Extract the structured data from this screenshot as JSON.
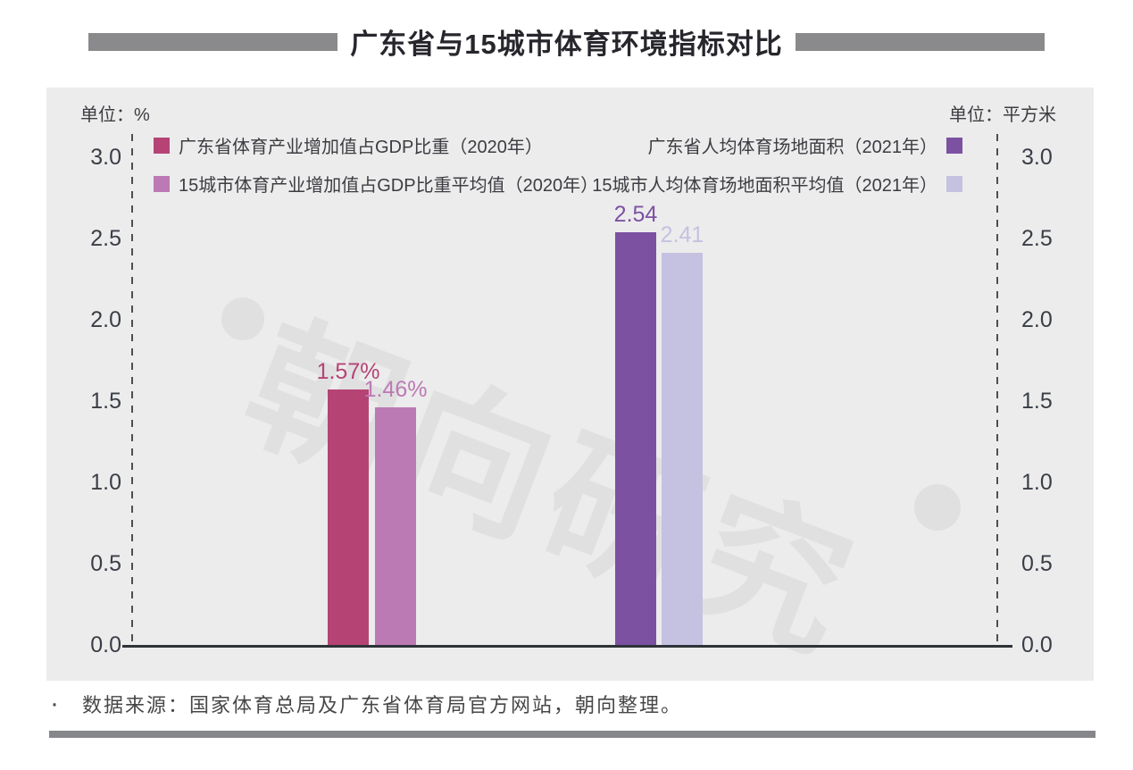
{
  "header": {
    "title": "广东省与15城市体育环境指标对比"
  },
  "chart_data": {
    "type": "bar",
    "title": "广东省与15城市体育环境指标对比",
    "left_axis": {
      "unit": "单位：%",
      "range": [
        0.0,
        3.0
      ],
      "ticks": [
        "3.0",
        "2.5",
        "2.0",
        "1.5",
        "1.0",
        "0.5",
        "0.0"
      ]
    },
    "right_axis": {
      "unit": "单位：平方米",
      "range": [
        0.0,
        3.0
      ],
      "ticks": [
        "3.0",
        "2.5",
        "2.0",
        "1.5",
        "1.0",
        "0.5",
        "0.0"
      ]
    },
    "series": [
      {
        "name": "广东省体育产业增加值占GDP比重（2020年）",
        "axis": "left",
        "value": 1.57,
        "label": "1.57%",
        "color": "#b54475"
      },
      {
        "name": "15城市体育产业增加值占GDP比重平均值（2020年）",
        "axis": "left",
        "value": 1.46,
        "label": "1.46%",
        "color": "#bc7ab4"
      },
      {
        "name": "广东省人均体育场地面积（2021年）",
        "axis": "right",
        "value": 2.54,
        "label": "2.54",
        "color": "#7c51a2"
      },
      {
        "name": "15城市人均体育场地面积平均值（2021年）",
        "axis": "right",
        "value": 2.41,
        "label": "2.41",
        "color": "#c5c1e1"
      }
    ],
    "grid": false,
    "legend_position": "top",
    "watermark": "朝向研究"
  },
  "footer": {
    "bullet": "·",
    "source": "数据来源：国家体育总局及广东省体育局官方网站，朝向整理。"
  }
}
